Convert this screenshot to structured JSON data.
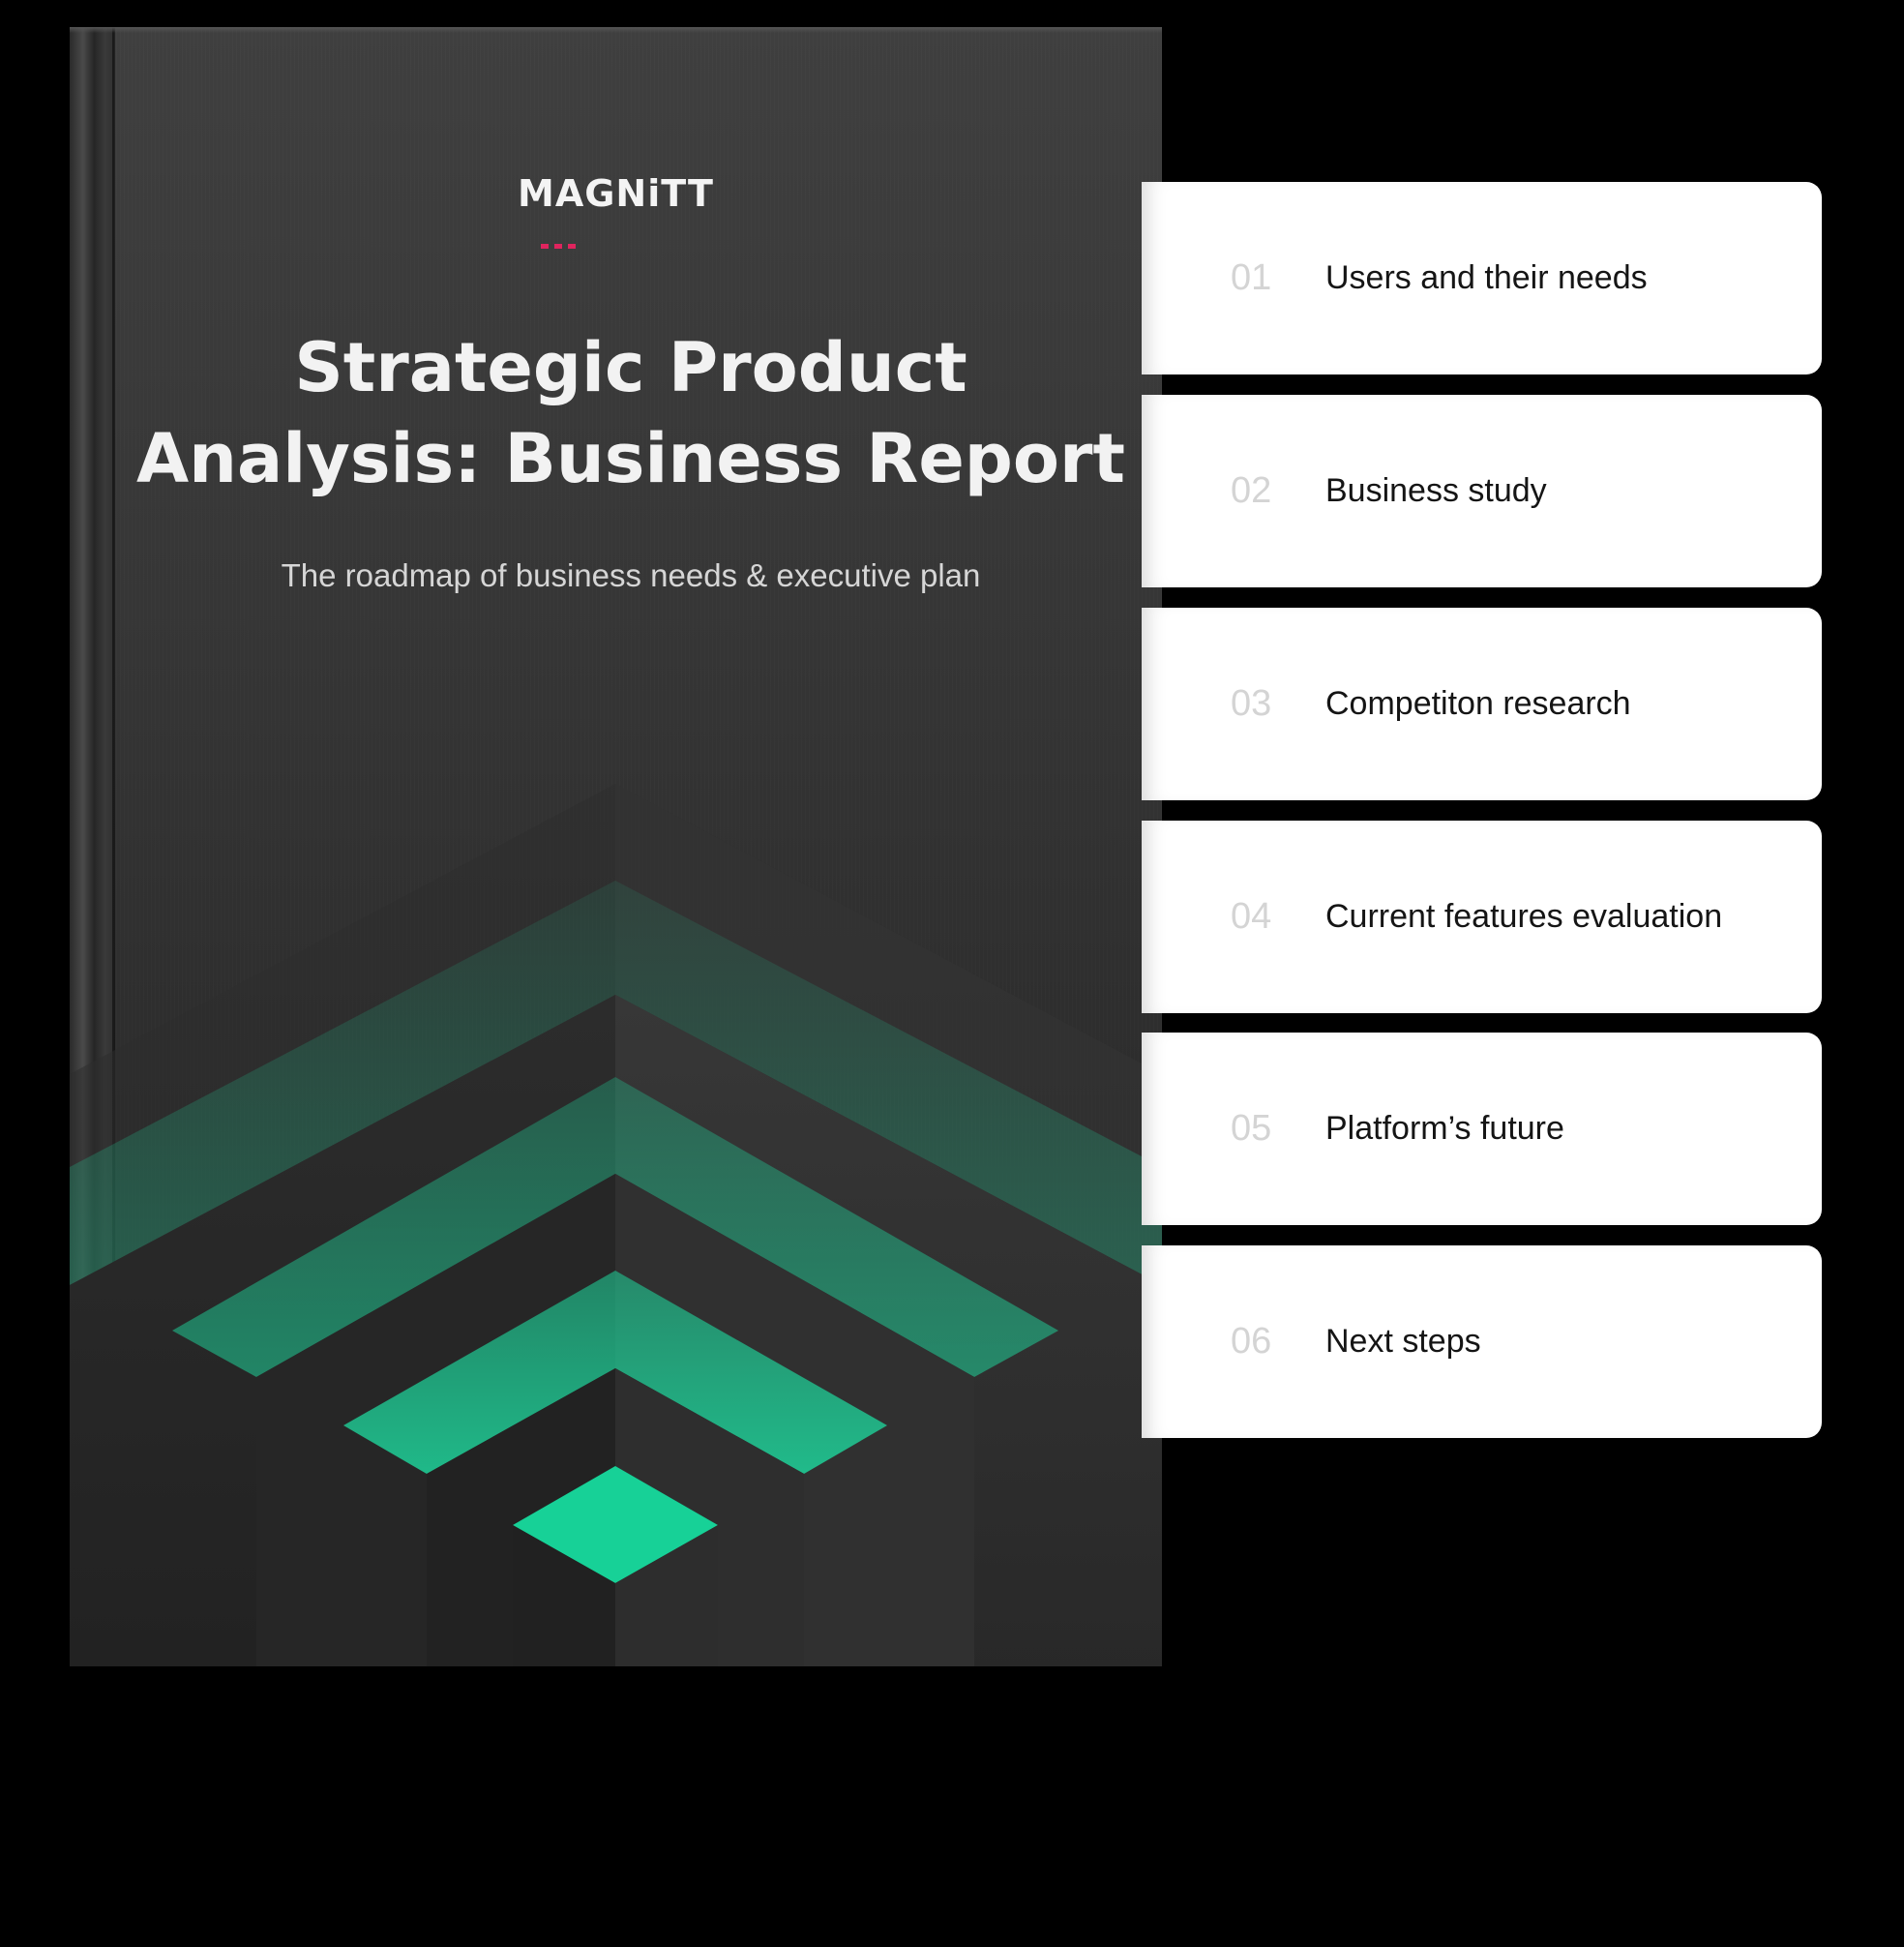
{
  "book": {
    "logo": "MAGNiTT",
    "title_line1": "Strategic Product",
    "title_line2": "Analysis: Business Report",
    "subtitle": "The roadmap of business needs & executive plan"
  },
  "toc": {
    "items": [
      {
        "number": "01",
        "label": "Users and their needs"
      },
      {
        "number": "02",
        "label": "Business study"
      },
      {
        "number": "03",
        "label": "Competiton research"
      },
      {
        "number": "04",
        "label": "Current features evaluation"
      },
      {
        "number": "05",
        "label": "Platform’s future"
      },
      {
        "number": "06",
        "label": "Next steps"
      }
    ]
  },
  "colors": {
    "background": "#000000",
    "cover": "#363636",
    "accent_green": "#1ed39a",
    "logo_accent": "#e0245e",
    "card": "#ffffff",
    "number_gray": "#d4d4d4"
  }
}
